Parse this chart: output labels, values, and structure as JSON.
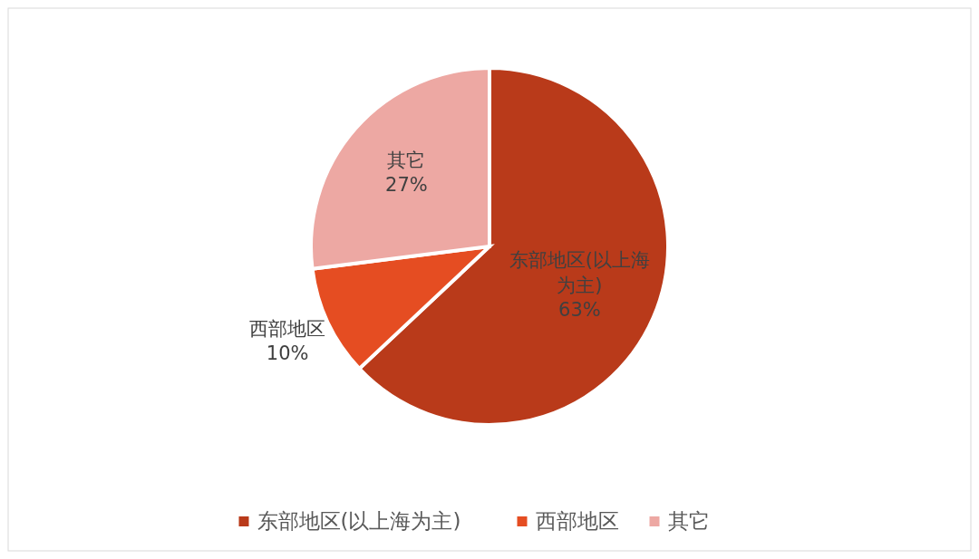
{
  "chart_data": {
    "type": "pie",
    "categories": [
      "东部地区(以上海为主)",
      "西部地区",
      "其它"
    ],
    "values": [
      63,
      10,
      27
    ],
    "colors": [
      "#b93a1a",
      "#e54d22",
      "#eda8a3"
    ],
    "value_labels": [
      "63%",
      "10%",
      "27%"
    ],
    "legend": "bottom"
  }
}
